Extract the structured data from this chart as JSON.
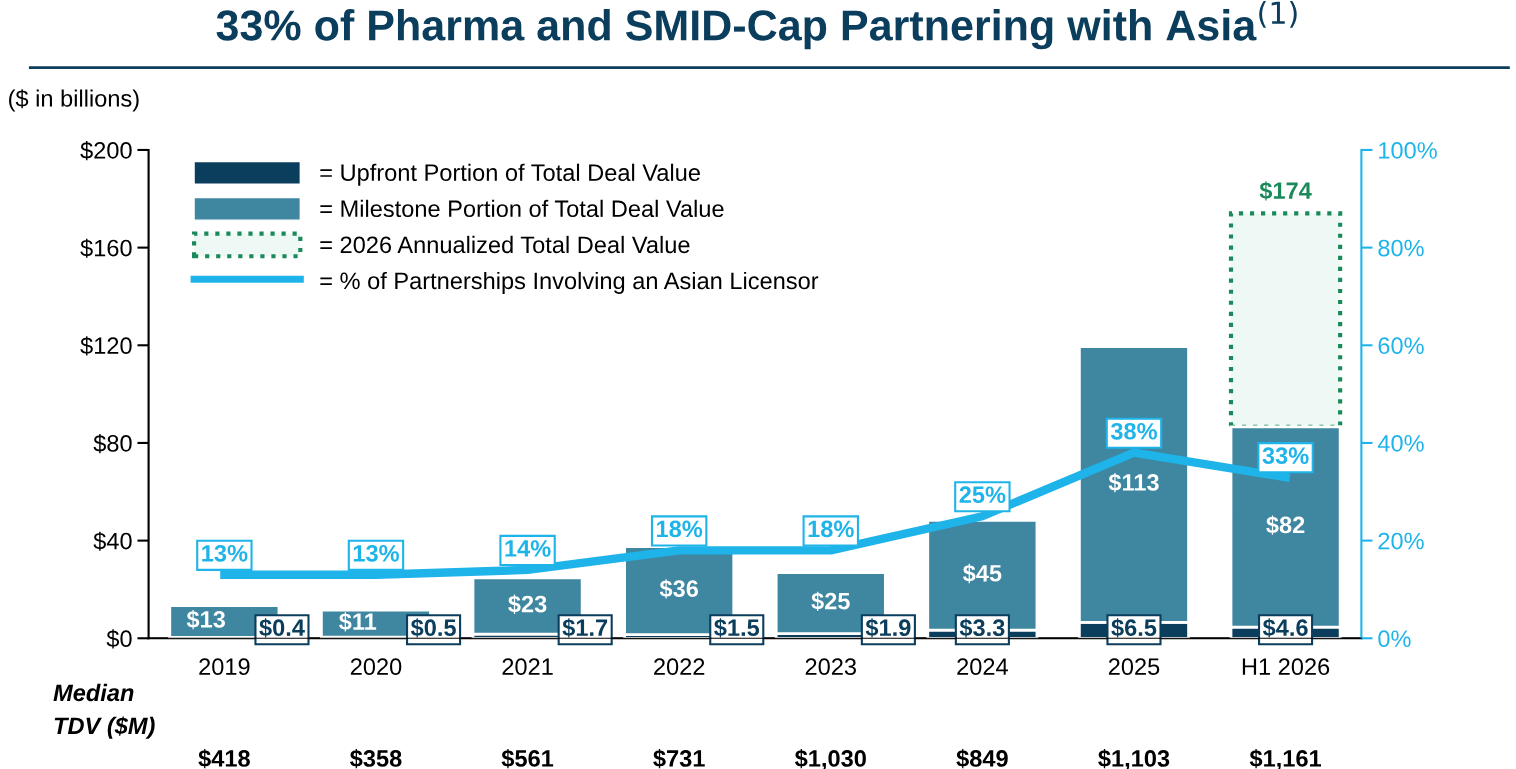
{
  "chart_data": {
    "type": "bar",
    "title": "33% of Pharma and SMID-Cap Partnering with Asia$^{(1)}$",
    "ylabel": "($ in billions)",
    "categories": [
      "2019",
      "2020",
      "2021",
      "2022",
      "2023",
      "2024",
      "2025",
      "H1 2026"
    ],
    "stacked": true,
    "totals": [
      null,
      null,
      null,
      null,
      null,
      null,
      null,
      "$174"
    ],
    "series": [
      {
        "name": "= Upfront Portion of Total Deal Value",
        "color": "#0b3d5c",
        "values": [
          0.4,
          0.5,
          1.7,
          1.5,
          1.9,
          3.3,
          6.5,
          4.6
        ],
        "value_labels": [
          "$0.4",
          "$0.5",
          "$1.7",
          "$1.5",
          "$1.9",
          "$3.3",
          "$6.5",
          "$4.6"
        ]
      },
      {
        "name": "= Milestone Portion of Total Deal Value",
        "color": "#3f86a0",
        "values": [
          13,
          11,
          23,
          36,
          25,
          45,
          113,
          82
        ],
        "value_labels": [
          "$13",
          "$11",
          "$23",
          "$36",
          "$25",
          "$45",
          "$113",
          "$82"
        ]
      },
      {
        "name": "= 2026 Annualized Total Deal Value",
        "color": "#1a8a5a",
        "line_style": "dotted",
        "values": [
          null,
          null,
          null,
          null,
          null,
          null,
          null,
          87.4
        ]
      },
      {
        "name": "= % of Partnerships Involving an Asian Licensor",
        "type": "line",
        "axis": "y2",
        "color": "#1eb4ea",
        "values": [
          13,
          13,
          14,
          18,
          18,
          25,
          38,
          33
        ],
        "value_labels": [
          "13%",
          "13%",
          "14%",
          "18%",
          "18%",
          "25%",
          "38%",
          "33%"
        ]
      }
    ],
    "ylim": [
      0,
      200
    ],
    "yticks": [
      {
        "value": 0,
        "label": "$0"
      },
      {
        "value": 40,
        "label": "$40"
      },
      {
        "value": 80,
        "label": "$80"
      },
      {
        "value": 120,
        "label": "$120"
      },
      {
        "value": 160,
        "label": "$160"
      },
      {
        "value": 200,
        "label": "$200"
      }
    ],
    "y2lim": [
      0,
      100
    ],
    "y2ticks": [
      {
        "value": 0,
        "label": "0%"
      },
      {
        "value": 20,
        "label": "20%"
      },
      {
        "value": 40,
        "label": "40%"
      },
      {
        "value": 60,
        "label": "60%"
      },
      {
        "value": 80,
        "label": "80%"
      },
      {
        "value": 100,
        "label": "100%"
      }
    ],
    "legend": "top left",
    "grid": false,
    "marker": "none",
    "annotations": [
      "Median\nTDV ($M)",
      "$418",
      "$358",
      "$561",
      "$731",
      "$1,030",
      "$849",
      "$1,103",
      "$1,161"
    ]
  }
}
